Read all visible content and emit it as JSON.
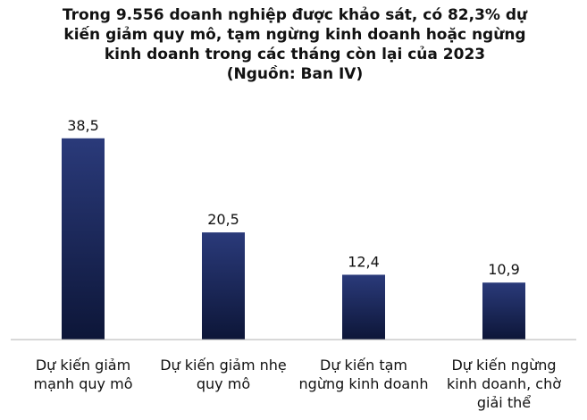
{
  "chart_data": {
    "type": "bar",
    "title_lines": [
      "Trong 9.556 doanh nghiệp được khảo sát, có 82,3% dự",
      "kiến giảm quy mô, tạm ngừng kinh doanh hoặc ngừng",
      "kinh doanh trong các tháng còn lại của 2023",
      "(Nguồn: Ban IV)"
    ],
    "categories": [
      [
        "Dự kiến giảm",
        "mạnh quy mô"
      ],
      [
        "Dự kiến giảm nhẹ",
        "quy mô"
      ],
      [
        "Dự kiến tạm",
        "ngừng kinh doanh"
      ],
      [
        "Dự kiến ngừng",
        "kinh doanh, chờ",
        "giải thể"
      ]
    ],
    "values": [
      38.5,
      20.5,
      12.4,
      10.9
    ],
    "value_labels": [
      "38,5",
      "20,5",
      "12,4",
      "10,9"
    ],
    "ylim": [
      0,
      40
    ],
    "grid": false,
    "legend": "none",
    "bar_color_top": "#2a3a7a",
    "bar_color_bottom": "#0d1638",
    "axis_color": "#b0b0b0"
  }
}
